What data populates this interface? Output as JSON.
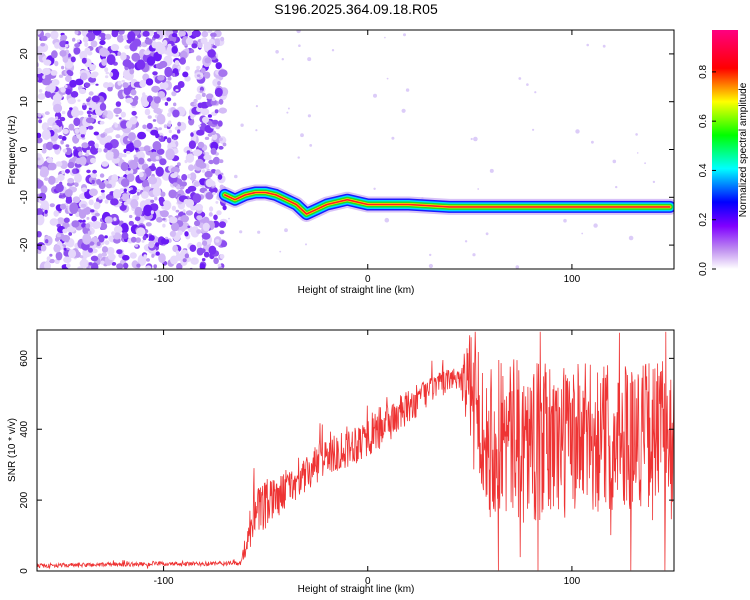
{
  "title": "S196.2025.364.09.18.R05",
  "chart_data": [
    {
      "type": "heatmap",
      "title": "S196.2025.364.09.18.R05",
      "xlabel": "Height of straight line (km)",
      "ylabel": "Frequency (Hz)",
      "xlim": [
        -162,
        150
      ],
      "ylim": [
        -25,
        25
      ],
      "xticks": [
        -100,
        0,
        100
      ],
      "yticks": [
        -20,
        -10,
        0,
        10,
        20
      ],
      "noise_region_x": [
        -162,
        -70
      ],
      "ridge": {
        "x": [
          -70,
          -65,
          -60,
          -55,
          -50,
          -45,
          -40,
          -35,
          -30,
          -25,
          -20,
          -15,
          -10,
          -5,
          0,
          20,
          40,
          60,
          80,
          100,
          120,
          148
        ],
        "y": [
          -9.5,
          -10.5,
          -9.5,
          -9,
          -9,
          -9.5,
          -10.5,
          -11.5,
          -13.5,
          -12.5,
          -11.5,
          -11,
          -10.5,
          -11,
          -11.5,
          -11.5,
          -12,
          -12,
          -12,
          -12,
          -12,
          -12
        ]
      },
      "colorbar": {
        "label": "Normalized spectral amplitude",
        "ticks": [
          "0.0",
          "0.2",
          "0.4",
          "0.6",
          "0.8"
        ],
        "range": [
          0,
          0.97
        ],
        "colors": [
          "#ffffff",
          "#a020f0",
          "#0000ff",
          "#00ffff",
          "#00ff00",
          "#ffff00",
          "#ff0000",
          "#ff0080"
        ]
      }
    },
    {
      "type": "line",
      "title": "",
      "xlabel": "Height of straight line (km)",
      "ylabel": "SNR (10 * v/v)",
      "xlim": [
        -162,
        150
      ],
      "ylim": [
        0,
        680
      ],
      "xticks": [
        -100,
        0,
        100
      ],
      "yticks": [
        0,
        200,
        400,
        600
      ],
      "color": "#ee3333",
      "series": [
        {
          "name": "SNR",
          "x": [
            -162,
            -130,
            -100,
            -80,
            -62,
            -58,
            -55,
            -50,
            -40,
            -30,
            -25,
            -20,
            -10,
            0,
            10,
            20,
            30,
            40,
            45,
            50,
            60,
            80,
            100,
            120,
            140,
            150
          ],
          "y": [
            15,
            18,
            20,
            20,
            22,
            120,
            160,
            180,
            230,
            270,
            300,
            330,
            350,
            380,
            420,
            460,
            510,
            540,
            550,
            520,
            380,
            360,
            370,
            380,
            390,
            400
          ],
          "amplitude": [
            6,
            6,
            6,
            6,
            6,
            60,
            70,
            70,
            50,
            50,
            60,
            60,
            60,
            60,
            60,
            50,
            40,
            30,
            40,
            150,
            230,
            230,
            220,
            210,
            210,
            210
          ]
        }
      ]
    }
  ]
}
